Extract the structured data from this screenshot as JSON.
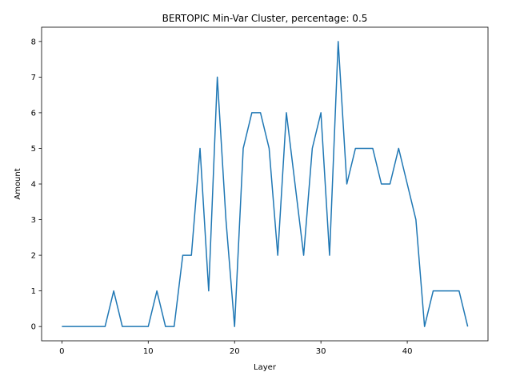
{
  "chart_data": {
    "type": "line",
    "title": "BERTOPIC Min-Var Cluster, percentage: 0.5",
    "xlabel": "Layer",
    "ylabel": "Amount",
    "xlim": [
      -2.35,
      49.35
    ],
    "ylim": [
      -0.4,
      8.4
    ],
    "xticks": [
      0,
      10,
      20,
      30,
      40
    ],
    "yticks": [
      0,
      1,
      2,
      3,
      4,
      5,
      6,
      7,
      8
    ],
    "grid": false,
    "series": [
      {
        "color": "#1f77b4",
        "x": [
          0,
          1,
          2,
          3,
          4,
          5,
          6,
          7,
          8,
          9,
          10,
          11,
          12,
          13,
          14,
          15,
          16,
          17,
          18,
          19,
          20,
          21,
          22,
          23,
          24,
          25,
          26,
          27,
          28,
          29,
          30,
          31,
          32,
          33,
          34,
          35,
          36,
          37,
          38,
          39,
          40,
          41,
          42,
          43,
          44,
          45,
          46,
          47
        ],
        "y": [
          0,
          0,
          0,
          0,
          0,
          0,
          1,
          0,
          0,
          0,
          0,
          1,
          0,
          0,
          2,
          2,
          5,
          1,
          7,
          3,
          0,
          5,
          6,
          6,
          5,
          2,
          6,
          4,
          2,
          5,
          6,
          2,
          8,
          4,
          5,
          5,
          5,
          4,
          4,
          5,
          4,
          3,
          0,
          1,
          1,
          1,
          1,
          0
        ]
      }
    ]
  }
}
